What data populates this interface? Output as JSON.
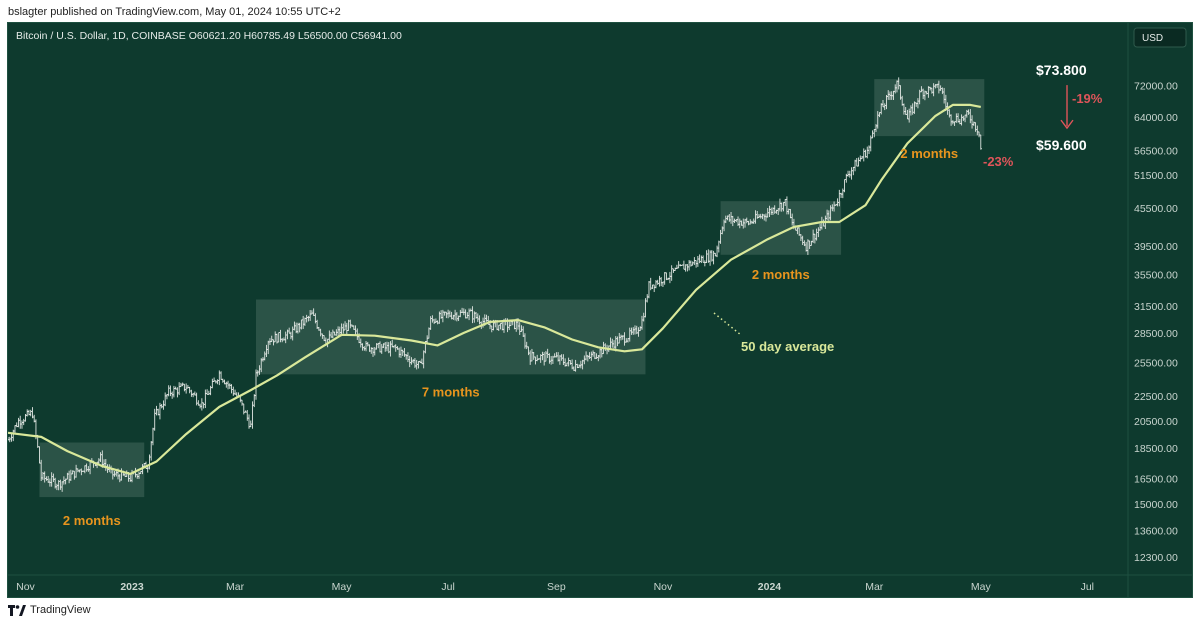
{
  "header": {
    "published_text": "bslagter published on TradingView.com, May 01, 2024 10:55 UTC+2"
  },
  "footer": {
    "brand": "TradingView"
  },
  "chart_data": {
    "type": "ohlc",
    "symbol_line": "Bitcoin / U.S. Dollar, 1D, COINBASE  O60621.20  H60785.49  L56500.00  C56941.00",
    "currency_label": "USD",
    "y_scale": "log",
    "ylim": [
      11500,
      82000
    ],
    "y_ticks": [
      12300,
      13600,
      15000,
      16500,
      18500,
      20500,
      22500,
      25500,
      28500,
      31500,
      35500,
      39500,
      45500,
      51500,
      56500,
      64000,
      72000
    ],
    "y_tick_labels": [
      "12300.00",
      "13600.00",
      "15000.00",
      "16500.00",
      "18500.00",
      "20500.00",
      "22500.00",
      "25500.00",
      "28500.00",
      "31500.00",
      "35500.00",
      "39500.00",
      "45500.00",
      "51500.00",
      "56500.00",
      "64000.00",
      "72000.00"
    ],
    "x_range": [
      "2022-10-22",
      "2024-07-22"
    ],
    "x_ticks": [
      {
        "date": "2022-11-01",
        "label": "Nov",
        "bold": false
      },
      {
        "date": "2023-01-01",
        "label": "2023",
        "bold": true
      },
      {
        "date": "2023-03-01",
        "label": "Mar",
        "bold": false
      },
      {
        "date": "2023-05-01",
        "label": "May",
        "bold": false
      },
      {
        "date": "2023-07-01",
        "label": "Jul",
        "bold": false
      },
      {
        "date": "2023-09-01",
        "label": "Sep",
        "bold": false
      },
      {
        "date": "2023-11-01",
        "label": "Nov",
        "bold": false
      },
      {
        "date": "2024-01-01",
        "label": "2024",
        "bold": true
      },
      {
        "date": "2024-03-01",
        "label": "Mar",
        "bold": false
      },
      {
        "date": "2024-05-01",
        "label": "May",
        "bold": false
      },
      {
        "date": "2024-07-01",
        "label": "Jul",
        "bold": false
      }
    ],
    "price_path": [
      [
        "2022-10-22",
        19100
      ],
      [
        "2022-10-28",
        20500
      ],
      [
        "2022-11-05",
        21100
      ],
      [
        "2022-11-08",
        18500
      ],
      [
        "2022-11-10",
        16600
      ],
      [
        "2022-11-20",
        16200
      ],
      [
        "2022-12-01",
        17000
      ],
      [
        "2022-12-14",
        17800
      ],
      [
        "2022-12-20",
        16800
      ],
      [
        "2022-12-31",
        16550
      ],
      [
        "2023-01-10",
        17400
      ],
      [
        "2023-01-14",
        20800
      ],
      [
        "2023-01-22",
        22800
      ],
      [
        "2023-02-01",
        23300
      ],
      [
        "2023-02-10",
        21800
      ],
      [
        "2023-02-20",
        24500
      ],
      [
        "2023-03-03",
        22300
      ],
      [
        "2023-03-10",
        20100
      ],
      [
        "2023-03-13",
        24200
      ],
      [
        "2023-03-20",
        27800
      ],
      [
        "2023-04-01",
        28300
      ],
      [
        "2023-04-14",
        30500
      ],
      [
        "2023-04-22",
        27700
      ],
      [
        "2023-05-05",
        29300
      ],
      [
        "2023-05-15",
        27000
      ],
      [
        "2023-06-01",
        26900
      ],
      [
        "2023-06-15",
        25100
      ],
      [
        "2023-06-21",
        29800
      ],
      [
        "2023-07-01",
        30500
      ],
      [
        "2023-07-13",
        30700
      ],
      [
        "2023-07-25",
        29300
      ],
      [
        "2023-08-10",
        29400
      ],
      [
        "2023-08-17",
        26100
      ],
      [
        "2023-09-01",
        25900
      ],
      [
        "2023-09-11",
        25200
      ],
      [
        "2023-09-25",
        26500
      ],
      [
        "2023-10-05",
        27600
      ],
      [
        "2023-10-16",
        28500
      ],
      [
        "2023-10-20",
        29800
      ],
      [
        "2023-10-24",
        34000
      ],
      [
        "2023-11-01",
        35000
      ],
      [
        "2023-11-15",
        36800
      ],
      [
        "2023-12-01",
        38300
      ],
      [
        "2023-12-06",
        43800
      ],
      [
        "2023-12-20",
        43000
      ],
      [
        "2024-01-10",
        46500
      ],
      [
        "2024-01-14",
        42800
      ],
      [
        "2024-01-22",
        39500
      ],
      [
        "2024-02-01",
        43000
      ],
      [
        "2024-02-09",
        47000
      ],
      [
        "2024-02-15",
        51800
      ],
      [
        "2024-02-27",
        57000
      ],
      [
        "2024-03-01",
        62000
      ],
      [
        "2024-03-05",
        66000
      ],
      [
        "2024-03-14",
        72500
      ],
      [
        "2024-03-20",
        63500
      ],
      [
        "2024-03-28",
        70500
      ],
      [
        "2024-04-08",
        71500
      ],
      [
        "2024-04-13",
        64000
      ],
      [
        "2024-04-19",
        63500
      ],
      [
        "2024-04-24",
        64500
      ],
      [
        "2024-04-30",
        60600
      ],
      [
        "2024-05-01",
        56941
      ]
    ],
    "ma50_label": "50 day average",
    "ma50_path": [
      [
        "2022-10-22",
        19600
      ],
      [
        "2022-11-10",
        19300
      ],
      [
        "2022-11-25",
        18300
      ],
      [
        "2022-12-15",
        17300
      ],
      [
        "2022-12-31",
        16800
      ],
      [
        "2023-01-15",
        17600
      ],
      [
        "2023-02-01",
        19500
      ],
      [
        "2023-02-20",
        21600
      ],
      [
        "2023-03-10",
        23000
      ],
      [
        "2023-03-25",
        24300
      ],
      [
        "2023-04-10",
        26000
      ],
      [
        "2023-05-01",
        28300
      ],
      [
        "2023-05-20",
        28200
      ],
      [
        "2023-06-10",
        27700
      ],
      [
        "2023-06-25",
        27200
      ],
      [
        "2023-07-10",
        28500
      ],
      [
        "2023-07-25",
        29700
      ],
      [
        "2023-08-10",
        29900
      ],
      [
        "2023-08-25",
        29100
      ],
      [
        "2023-09-10",
        27800
      ],
      [
        "2023-09-25",
        27000
      ],
      [
        "2023-10-10",
        26600
      ],
      [
        "2023-10-20",
        26800
      ],
      [
        "2023-11-01",
        29000
      ],
      [
        "2023-11-20",
        33500
      ],
      [
        "2023-12-10",
        37500
      ],
      [
        "2023-12-31",
        40500
      ],
      [
        "2024-01-15",
        42400
      ],
      [
        "2024-01-31",
        43200
      ],
      [
        "2024-02-10",
        43200
      ],
      [
        "2024-02-25",
        46000
      ],
      [
        "2024-03-05",
        50500
      ],
      [
        "2024-03-20",
        58000
      ],
      [
        "2024-04-05",
        64300
      ],
      [
        "2024-04-15",
        67000
      ],
      [
        "2024-04-25",
        67000
      ],
      [
        "2024-05-01",
        66500
      ]
    ],
    "consolidation_boxes": [
      {
        "label": "2 months",
        "start": "2022-11-09",
        "end": "2023-01-08",
        "low": 15400,
        "high": 18900
      },
      {
        "label": "7 months",
        "start": "2023-03-13",
        "end": "2023-10-22",
        "low": 24400,
        "high": 32300
      },
      {
        "label": "2 months",
        "start": "2023-12-04",
        "end": "2024-02-11",
        "low": 38200,
        "high": 46700
      },
      {
        "label": "2 months",
        "start": "2024-03-01",
        "end": "2024-05-03",
        "low": 59600,
        "high": 73800
      }
    ],
    "annotations": {
      "high_price": "$73.800",
      "low_price": "$59.600",
      "drop_box_pct": "-19%",
      "drop_current_pct": "-23%"
    },
    "colors": {
      "background": "#0e3a2e",
      "bars": "#e0e6e2",
      "ma_line": "#d9e89a",
      "box_fill": "rgba(180,200,190,0.18)",
      "box_label": "#e8951e",
      "red": "#e0555a",
      "axis_text": "#c9d5cf",
      "white_text": "#ffffff"
    }
  }
}
